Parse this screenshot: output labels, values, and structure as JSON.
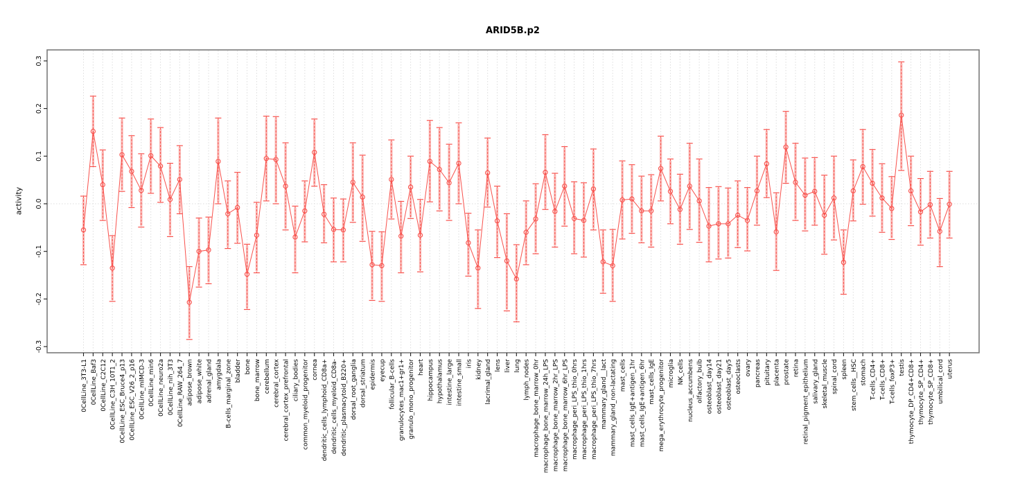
{
  "chart_data": {
    "type": "line",
    "title": "ARID5B.p2",
    "ylabel": "activity",
    "xlabel": "",
    "ylim": [
      -0.3,
      0.3
    ],
    "yticks": [
      0.3,
      0.2,
      0.1,
      0.0,
      -0.1,
      -0.2,
      -0.3
    ],
    "ytick_labels": [
      "0.3",
      "0.2",
      "0.1",
      "0.0",
      "-0.1",
      "-0.2",
      "-0.3"
    ],
    "grid": {
      "vertical_dotted_per_category": true,
      "dotted_zero_line": true,
      "legend": "none"
    },
    "colors": {
      "series": "#f8504b",
      "inner_band": "#fab5b2",
      "grid": "#dcdcdc",
      "frame": "#7a7a7a",
      "tick": "#1c1c1c",
      "text": "#000000",
      "background": "#ffffff"
    },
    "marker": "open-circle",
    "error_bars": "capped, with thick light-pink inner band",
    "categories": [
      "0CellLine_3T3-L1",
      "0CellLine_Baf3",
      "0CellLine_C2C12",
      "0CellLine_C3H_10T1_2",
      "0CellLine_ESC_Bruce4_p13",
      "0CellLine_ESC_V26_2_p16",
      "0CellLine_mIMCD-3",
      "0CellLine_min6",
      "0CellLine_neuro2a",
      "0CellLine_nih_3T3",
      "0CellLine_RAW_264_7",
      "adipose_brown",
      "adipose_white",
      "adrenal_gland",
      "amygdala",
      "B-cells_marginal_zone",
      "bladder",
      "bone",
      "bone_marrow",
      "cerebellum",
      "cerebral_cortex",
      "cerebral_cortex_prefrontal",
      "ciliary_bodies",
      "common_myeloid_progenitor",
      "cornea",
      "dendritic_cells_lymphoid_CD8a+",
      "dendritic_cells_myeloid_CD8a-",
      "dendritic_plasmacytoid_B220+",
      "dorsal_root_ganglia",
      "dorsal_striatum",
      "epidermis",
      "eyecup",
      "follicular_B-cells",
      "granulocytes_mac1+gr1+",
      "granulo_mono_progenitor",
      "heart",
      "hippocampus",
      "hypothalamus",
      "intestine_large",
      "intestine_small",
      "iris",
      "kidney",
      "lacrimal_gland",
      "lens",
      "liver",
      "lung",
      "lymph_nodes",
      "macrophage_bone_marrow_0hr",
      "macrophage_bone_marrow_24h_LPS",
      "macrophage_bone_marrow_2hr_LPS",
      "macrophage_bone_marrow_6hr_LPS",
      "macrophage_peri_LPS_thio_0hrs",
      "macrophage_peri_LPS_thio_1hrs",
      "macrophage_peri_LPS_thio_7hrs",
      "mammary_gland__lact",
      "mammary_gland_non-lactating",
      "mast_cells",
      "mast_cells_IgE+antigen_1hr",
      "mast_cells_IgE+antigen_6hr",
      "mast_cells_IgE",
      "mega_erythrocyte_progenitor",
      "microglia",
      "NK_cells",
      "nucleus_accumbens",
      "olfactory_bulb",
      "osteoblast_day14",
      "osteoblast_day21",
      "osteoblast_day5",
      "osteoclasts",
      "ovary",
      "pancreas",
      "pituitary",
      "placenta",
      "prostate",
      "retina",
      "retinal_pigment_epithelium",
      "salivary_gland",
      "skeletal_muscle",
      "spinal_cord",
      "spleen",
      "stem_cells__HSC",
      "stomach",
      "T-cells_CD4+",
      "T-cells_CD8+",
      "T-cells_foxP3+",
      "testis",
      "thymocyte_DP_CD4+CD8+",
      "thymocyte_SP_CD4+",
      "thymocyte_SP_CD8+",
      "umbilical_cord",
      "uterus"
    ],
    "series": [
      {
        "name": "activity",
        "values": [
          -0.055,
          0.152,
          0.04,
          -0.135,
          0.103,
          0.068,
          0.028,
          0.101,
          0.079,
          0.009,
          0.051,
          -0.207,
          -0.1,
          -0.097,
          0.089,
          -0.021,
          -0.008,
          -0.148,
          -0.066,
          0.095,
          0.093,
          0.037,
          -0.07,
          -0.015,
          0.108,
          -0.022,
          -0.054,
          -0.055,
          0.045,
          0.014,
          -0.128,
          -0.13,
          0.051,
          -0.068,
          0.035,
          -0.066,
          0.089,
          0.072,
          0.044,
          0.085,
          -0.082,
          -0.135,
          0.065,
          -0.036,
          -0.12,
          -0.158,
          -0.06,
          -0.032,
          0.066,
          -0.016,
          0.037,
          -0.031,
          -0.035,
          0.031,
          -0.122,
          -0.13,
          0.008,
          0.01,
          -0.015,
          -0.015,
          0.074,
          0.026,
          -0.012,
          0.037,
          0.006,
          -0.047,
          -0.042,
          -0.042,
          -0.024,
          -0.035,
          0.027,
          0.084,
          -0.059,
          0.119,
          0.045,
          0.018,
          0.026,
          -0.024,
          0.012,
          -0.123,
          0.027,
          0.078,
          0.043,
          0.012,
          -0.01,
          0.186,
          0.027,
          -0.017,
          -0.002,
          -0.058,
          -0.001
        ],
        "err_low": [
          -0.128,
          0.078,
          -0.035,
          -0.205,
          0.026,
          -0.008,
          -0.049,
          0.022,
          0.003,
          -0.069,
          -0.021,
          -0.285,
          -0.175,
          -0.168,
          0.0,
          -0.094,
          -0.083,
          -0.222,
          -0.145,
          0.006,
          0.0,
          -0.055,
          -0.145,
          -0.08,
          0.037,
          -0.082,
          -0.122,
          -0.122,
          -0.039,
          -0.079,
          -0.203,
          -0.205,
          -0.032,
          -0.145,
          -0.031,
          -0.143,
          0.004,
          -0.015,
          -0.035,
          0.0,
          -0.152,
          -0.22,
          -0.007,
          -0.113,
          -0.225,
          -0.248,
          -0.128,
          -0.105,
          -0.012,
          -0.091,
          -0.047,
          -0.105,
          -0.112,
          -0.055,
          -0.188,
          -0.205,
          -0.074,
          -0.062,
          -0.082,
          -0.091,
          0.006,
          -0.042,
          -0.085,
          -0.054,
          -0.081,
          -0.122,
          -0.116,
          -0.114,
          -0.092,
          -0.099,
          -0.045,
          0.013,
          -0.14,
          0.043,
          -0.035,
          -0.057,
          -0.045,
          -0.106,
          -0.076,
          -0.19,
          -0.036,
          -0.001,
          -0.026,
          -0.06,
          -0.075,
          0.07,
          -0.046,
          -0.087,
          -0.072,
          -0.132,
          -0.072
        ],
        "err_high": [
          0.016,
          0.226,
          0.113,
          -0.067,
          0.18,
          0.143,
          0.105,
          0.178,
          0.16,
          0.085,
          0.122,
          -0.132,
          -0.03,
          -0.028,
          0.18,
          0.048,
          0.066,
          -0.085,
          0.003,
          0.184,
          0.183,
          0.128,
          -0.005,
          0.048,
          0.178,
          0.04,
          0.012,
          0.01,
          0.128,
          0.102,
          -0.058,
          -0.059,
          0.134,
          0.005,
          0.1,
          0.009,
          0.175,
          0.16,
          0.125,
          0.17,
          -0.02,
          -0.055,
          0.138,
          0.037,
          -0.021,
          -0.086,
          0.006,
          0.042,
          0.145,
          0.064,
          0.12,
          0.046,
          0.044,
          0.115,
          -0.055,
          -0.054,
          0.09,
          0.082,
          0.058,
          0.061,
          0.142,
          0.094,
          0.062,
          0.127,
          0.094,
          0.034,
          0.036,
          0.033,
          0.048,
          0.034,
          0.1,
          0.156,
          0.023,
          0.194,
          0.127,
          0.096,
          0.097,
          0.06,
          0.1,
          -0.055,
          0.092,
          0.156,
          0.114,
          0.084,
          0.057,
          0.298,
          0.1,
          0.053,
          0.068,
          0.011,
          0.068
        ]
      }
    ]
  }
}
